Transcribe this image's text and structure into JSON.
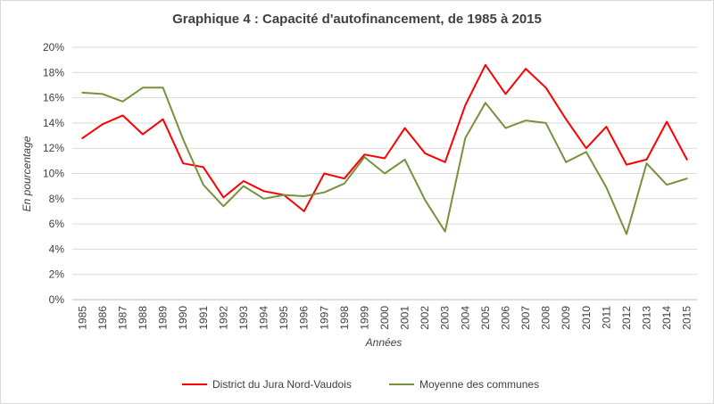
{
  "chart_data": {
    "type": "line",
    "title": "Graphique 4 : Capacité d'autofinancement, de 1985 à 2015",
    "xlabel": "Années",
    "ylabel": "En pourcentage",
    "ylim": [
      0,
      20
    ],
    "yticks": [
      "0%",
      "2%",
      "4%",
      "6%",
      "8%",
      "10%",
      "12%",
      "14%",
      "16%",
      "18%",
      "20%"
    ],
    "grid": true,
    "legend_position": "bottom",
    "categories": [
      "1985",
      "1986",
      "1987",
      "1988",
      "1989",
      "1990",
      "1991",
      "1992",
      "1993",
      "1994",
      "1995",
      "1996",
      "1997",
      "1998",
      "1999",
      "2000",
      "2001",
      "2002",
      "2003",
      "2004",
      "2005",
      "2006",
      "2007",
      "2008",
      "2009",
      "2010",
      "2011",
      "2012",
      "2013",
      "2014",
      "2015"
    ],
    "series": [
      {
        "name": "District du Jura Nord-Vaudois",
        "color": "#ff0000",
        "values": [
          12.8,
          13.9,
          14.6,
          13.1,
          14.3,
          10.8,
          10.5,
          8.1,
          9.4,
          8.6,
          8.3,
          7.0,
          10.0,
          9.6,
          11.5,
          11.2,
          13.6,
          11.6,
          10.9,
          15.4,
          18.6,
          16.3,
          18.3,
          16.8,
          14.3,
          12.0,
          13.7,
          10.7,
          11.1,
          14.1,
          11.1
        ]
      },
      {
        "name": "Moyenne des communes",
        "color": "#76923c",
        "values": [
          16.4,
          16.3,
          15.7,
          16.8,
          16.8,
          12.7,
          9.1,
          7.4,
          9.0,
          8.0,
          8.3,
          8.2,
          8.5,
          9.2,
          11.3,
          10.0,
          11.1,
          7.9,
          5.4,
          12.8,
          15.6,
          13.6,
          14.2,
          14.0,
          10.9,
          11.7,
          8.9,
          5.2,
          10.8,
          9.1,
          9.6
        ]
      }
    ]
  }
}
